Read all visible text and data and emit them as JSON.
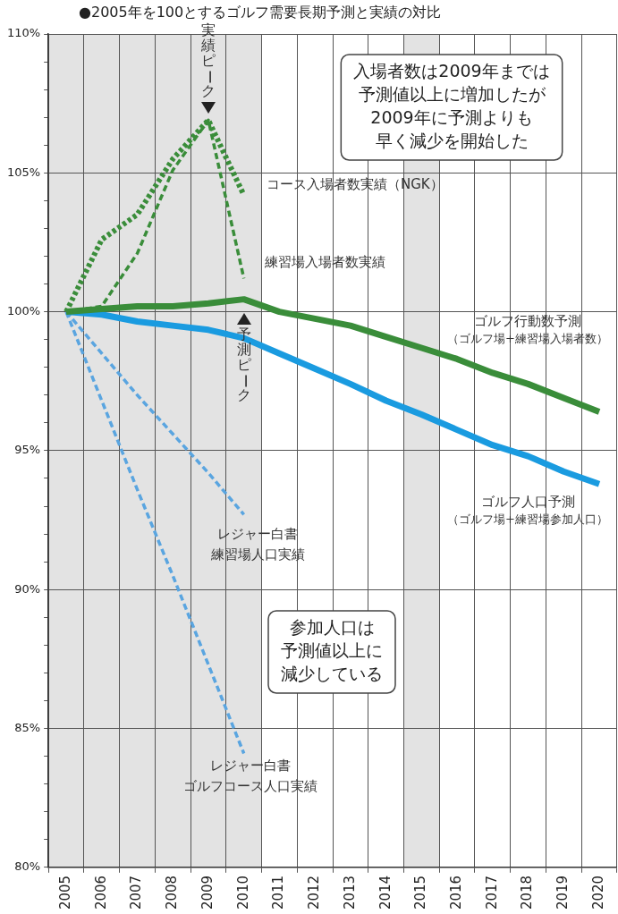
{
  "chart_data": {
    "type": "line",
    "title": "●2005年を100とするゴルフ需要長期予測と実績の対比",
    "categories": [
      "2005",
      "2006",
      "2007",
      "2008",
      "2009",
      "2010",
      "2011",
      "2012",
      "2013",
      "2014",
      "2015",
      "2016",
      "2017",
      "2018",
      "2019",
      "2020"
    ],
    "series": [
      {
        "name": "コース入場者数実績（NGK）",
        "color": "#3a8d3a",
        "line_style": "dotted",
        "values": [
          100,
          102.6,
          103.5,
          105.5,
          106.9,
          104.2,
          null,
          null,
          null,
          null,
          null,
          null,
          null,
          null,
          null,
          null
        ]
      },
      {
        "name": "練習場入場者数実績",
        "color": "#3a8d3a",
        "line_style": "dashed",
        "values": [
          100,
          100.2,
          102.1,
          105.1,
          106.9,
          101.2,
          null,
          null,
          null,
          null,
          null,
          null,
          null,
          null,
          null,
          null
        ]
      },
      {
        "name": "ゴルフ行動数予測",
        "color": "#3a8d3a",
        "line_style": "solid",
        "values": [
          100,
          100.1,
          100.2,
          100.2,
          100.3,
          100.45,
          100,
          99.75,
          99.5,
          99.1,
          98.7,
          98.3,
          97.8,
          97.4,
          96.9,
          96.4
        ]
      },
      {
        "name": "ゴルフ人口予測",
        "color": "#1a9be0",
        "line_style": "solid",
        "values": [
          100,
          99.9,
          99.65,
          99.5,
          99.35,
          99.05,
          98.5,
          97.95,
          97.4,
          96.8,
          96.3,
          95.75,
          95.2,
          94.8,
          94.25,
          93.8
        ]
      },
      {
        "name": "レジャー白書練習場人口実績",
        "color": "#5aa5e0",
        "line_style": "dashed",
        "values": [
          100,
          98.5,
          97,
          95.6,
          94.2,
          92.7,
          null,
          null,
          null,
          null,
          null,
          null,
          null,
          null,
          null,
          null
        ]
      },
      {
        "name": "レジャー白書ゴルフコース人口実績",
        "color": "#5aa5e0",
        "line_style": "dashed",
        "values": [
          100,
          96.8,
          93.6,
          90.5,
          87.3,
          84.1,
          null,
          null,
          null,
          null,
          null,
          null,
          null,
          null,
          null,
          null
        ]
      }
    ],
    "ylim": [
      80,
      110
    ],
    "yticks": [
      {
        "value": 80,
        "label": "80%"
      },
      {
        "value": 81,
        "label": null
      },
      {
        "value": 82,
        "label": null
      },
      {
        "value": 83,
        "label": null
      },
      {
        "value": 84,
        "label": null
      },
      {
        "value": 85,
        "label": "85%"
      },
      {
        "value": 86,
        "label": null
      },
      {
        "value": 87,
        "label": null
      },
      {
        "value": 88,
        "label": null
      },
      {
        "value": 89,
        "label": null
      },
      {
        "value": 90,
        "label": "90%"
      },
      {
        "value": 91,
        "label": null
      },
      {
        "value": 92,
        "label": null
      },
      {
        "value": 93,
        "label": null
      },
      {
        "value": 94,
        "label": null
      },
      {
        "value": 95,
        "label": "95%"
      },
      {
        "value": 96,
        "label": null
      },
      {
        "value": 97,
        "label": null
      },
      {
        "value": 98,
        "label": null
      },
      {
        "value": 99,
        "label": null
      },
      {
        "value": 100,
        "label": "100%"
      },
      {
        "value": 101,
        "label": null
      },
      {
        "value": 102,
        "label": null
      },
      {
        "value": 103,
        "label": null
      },
      {
        "value": 104,
        "label": null
      },
      {
        "value": 105,
        "label": "105%"
      },
      {
        "value": 106,
        "label": null
      },
      {
        "value": 107,
        "label": null
      },
      {
        "value": 108,
        "label": null
      },
      {
        "value": 109,
        "label": null
      },
      {
        "value": 110,
        "label": "110%"
      }
    ],
    "bands": [
      {
        "axis": "x",
        "from": "2005",
        "to": "2010",
        "color": "#e3e3e3"
      },
      {
        "axis": "x",
        "from": "2015",
        "to": "2015",
        "color": "#e3e3e3"
      }
    ],
    "annotations": [
      {
        "text": "実績ピーク",
        "x": "2009",
        "y": 106.9
      },
      {
        "text": "予測ピーク",
        "x": "2010",
        "y": 100.45
      },
      "入場者数は2009年までは予測値以上に増加したが2009年に予測よりも早く減少を開始した",
      "参加人口は予測値以上に減少している",
      "（ゴルフ場+練習場入場者数）",
      "（ゴルフ場+練習場参加人口）"
    ],
    "grid": true,
    "legend": false,
    "marker": "none"
  }
}
